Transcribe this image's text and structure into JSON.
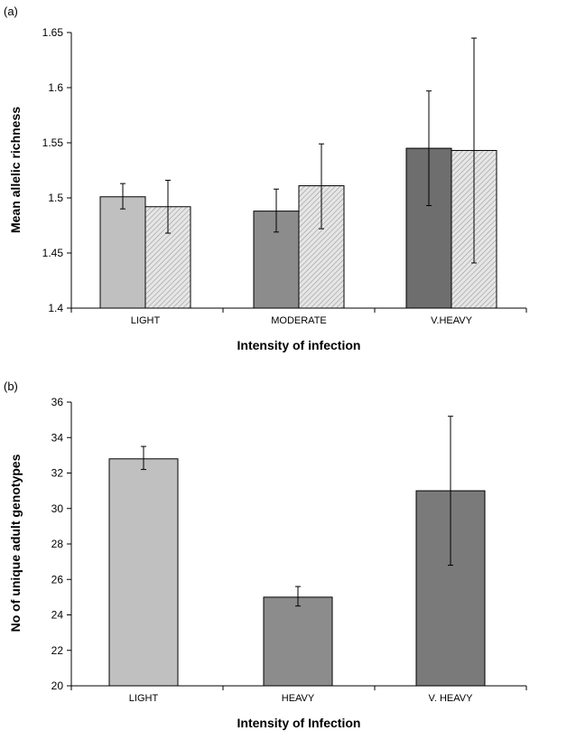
{
  "chart_data": [
    {
      "panel": "(a)",
      "type": "bar",
      "xlabel": "Intensity of infection",
      "ylabel": "Mean allelic richness",
      "ylim": [
        1.4,
        1.65
      ],
      "yticks": [
        "1.4",
        "1.45",
        "1.5",
        "1.55",
        "1.6",
        "1.65"
      ],
      "categories": [
        "LIGHT",
        "MODERATE",
        "V.HEAVY"
      ],
      "series": [
        {
          "fill": [
            "#c0c0c0",
            "#8c8c8c",
            "#6e6e6e"
          ],
          "pattern": false,
          "values": [
            1.501,
            1.488,
            1.545
          ],
          "error_low": [
            1.49,
            1.469,
            1.493
          ],
          "error_high": [
            1.513,
            1.508,
            1.597
          ]
        },
        {
          "fill": [
            "#cfcfcf",
            "#cfcfcf",
            "#cfcfcf"
          ],
          "pattern": true,
          "values": [
            1.492,
            1.511,
            1.543
          ],
          "error_low": [
            1.468,
            1.472,
            1.441
          ],
          "error_high": [
            1.516,
            1.549,
            1.645
          ]
        }
      ],
      "grid": false
    },
    {
      "panel": "(b)",
      "type": "bar",
      "xlabel": "Intensity of Infection",
      "ylabel": "No of unique adult genotypes",
      "ylim": [
        20,
        36
      ],
      "yticks": [
        "20",
        "22",
        "24",
        "26",
        "28",
        "30",
        "32",
        "34",
        "36"
      ],
      "categories": [
        "LIGHT",
        "HEAVY",
        "V. HEAVY"
      ],
      "series": [
        {
          "fill": [
            "#c0c0c0",
            "#8c8c8c",
            "#7a7a7a"
          ],
          "pattern": false,
          "values": [
            32.8,
            25.0,
            31.0
          ],
          "error_low": [
            32.2,
            24.5,
            26.8
          ],
          "error_high": [
            33.5,
            25.6,
            35.2
          ]
        }
      ],
      "grid": false
    }
  ]
}
